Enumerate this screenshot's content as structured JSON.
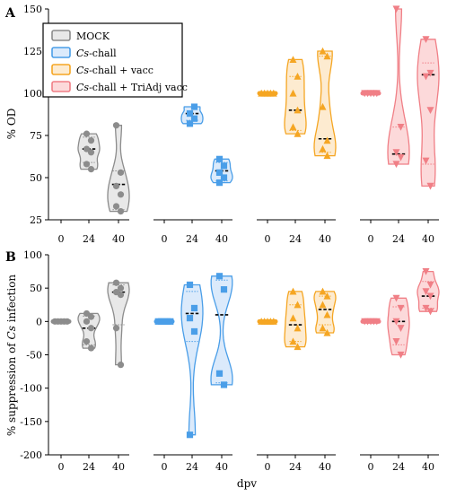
{
  "chart_data": [
    {
      "panel_label": "A",
      "type": "violin",
      "ylabel": "% OD",
      "ylim": [
        25,
        150
      ],
      "yticks": [
        25,
        50,
        75,
        100,
        125,
        150
      ],
      "groups": [
        {
          "name": "MOCK",
          "color": "#8c8c8c",
          "fill": "#e8e8e8",
          "marker": "circle",
          "timepoints": [
            {
              "dpv": "0",
              "points": [
                100,
                100,
                100,
                100,
                100
              ],
              "median": 100,
              "q1": 100,
              "q3": 100
            },
            {
              "dpv": "24",
              "points": [
                76,
                72,
                67,
                65,
                58,
                55
              ],
              "median": 67,
              "q1": 59,
              "q3": 74
            },
            {
              "dpv": "40",
              "points": [
                81,
                53,
                45,
                40,
                33,
                30
              ],
              "median": 46,
              "q1": 31,
              "q3": 54
            }
          ]
        },
        {
          "name": "Cs-chall",
          "color": "#4a9ee8",
          "fill": "#dbeafb",
          "marker": "square",
          "timepoints": [
            {
              "dpv": "0",
              "points": [
                100,
                100,
                100,
                100,
                100
              ],
              "median": 100,
              "q1": 100,
              "q3": 100
            },
            {
              "dpv": "24",
              "points": [
                88,
                85,
                82,
                92
              ],
              "median": 88,
              "q1": 84,
              "q3": 92
            },
            {
              "dpv": "40",
              "points": [
                61,
                57,
                53,
                50,
                47
              ],
              "median": 54,
              "q1": 48,
              "q3": 59
            }
          ]
        },
        {
          "name": "Cs-chall + vacc",
          "color": "#f5a623",
          "fill": "#fdebd0",
          "marker": "triangle",
          "timepoints": [
            {
              "dpv": "0",
              "points": [
                100,
                100,
                100,
                100,
                100
              ],
              "median": 100,
              "q1": 100,
              "q3": 100
            },
            {
              "dpv": "24",
              "points": [
                120,
                110,
                100,
                90,
                80,
                76
              ],
              "median": 90,
              "q1": 78,
              "q3": 110
            },
            {
              "dpv": "40",
              "points": [
                125,
                122,
                92,
                72,
                67,
                63
              ],
              "median": 73,
              "q1": 65,
              "q3": 122
            }
          ]
        },
        {
          "name": "Cs-chall + TriAdj vacc",
          "color": "#f07f86",
          "fill": "#fcd9da",
          "marker": "inverted-triangle",
          "timepoints": [
            {
              "dpv": "0",
              "points": [
                100,
                100,
                100,
                100,
                100
              ],
              "median": 100,
              "q1": 100,
              "q3": 100
            },
            {
              "dpv": "24",
              "points": [
                150,
                80,
                65,
                62,
                58
              ],
              "median": 64,
              "q1": 58,
              "q3": 80
            },
            {
              "dpv": "40",
              "points": [
                132,
                112,
                110,
                90,
                60,
                45
              ],
              "median": 111,
              "q1": 58,
              "q3": 118
            }
          ]
        }
      ]
    },
    {
      "panel_label": "B",
      "type": "violin",
      "ylabel_prefix": "% suppression of ",
      "ylabel_italic": "Cs",
      "ylabel_suffix": " infection",
      "ylim": [
        -200,
        100
      ],
      "yticks": [
        -200,
        -150,
        -100,
        -50,
        0,
        50,
        100
      ],
      "xlabel": "dpv",
      "groups": [
        {
          "name": "MOCK",
          "color": "#8c8c8c",
          "fill": "#e8e8e8",
          "marker": "circle",
          "timepoints": [
            {
              "dpv": "0",
              "points": [
                0,
                0,
                0,
                0,
                0
              ],
              "median": 0,
              "q1": 0,
              "q3": 0
            },
            {
              "dpv": "24",
              "points": [
                12,
                7,
                0,
                -10,
                -30,
                -40
              ],
              "median": -10,
              "q1": -35,
              "q3": 8
            },
            {
              "dpv": "40",
              "points": [
                58,
                50,
                44,
                40,
                -10,
                -65
              ],
              "median": 44,
              "q1": -5,
              "q3": 55
            }
          ]
        },
        {
          "name": "Cs-chall",
          "color": "#4a9ee8",
          "fill": "#dbeafb",
          "marker": "square",
          "timepoints": [
            {
              "dpv": "0",
              "points": [
                0,
                0,
                0,
                0,
                0
              ],
              "median": 0,
              "q1": 0,
              "q3": 0
            },
            {
              "dpv": "24",
              "points": [
                55,
                20,
                5,
                -15,
                -170
              ],
              "median": 12,
              "q1": -30,
              "q3": 45
            },
            {
              "dpv": "40",
              "points": [
                68,
                48,
                -78,
                -95
              ],
              "median": 10,
              "q1": -92,
              "q3": 62
            }
          ]
        },
        {
          "name": "Cs-chall + vacc",
          "color": "#f5a623",
          "fill": "#fdebd0",
          "marker": "triangle",
          "timepoints": [
            {
              "dpv": "0",
              "points": [
                0,
                0,
                0,
                0,
                0
              ],
              "median": 0,
              "q1": 0,
              "q3": 0
            },
            {
              "dpv": "24",
              "points": [
                45,
                25,
                5,
                -10,
                -30,
                -38
              ],
              "median": -5,
              "q1": -30,
              "q3": 25
            },
            {
              "dpv": "40",
              "points": [
                45,
                38,
                25,
                10,
                -10,
                -17
              ],
              "median": 18,
              "q1": -5,
              "q3": 38
            }
          ]
        },
        {
          "name": "Cs-chall + TriAdj vacc",
          "color": "#f07f86",
          "fill": "#fcd9da",
          "marker": "inverted-triangle",
          "timepoints": [
            {
              "dpv": "0",
              "points": [
                0,
                0,
                0,
                0,
                0
              ],
              "median": 0,
              "q1": 0,
              "q3": 0
            },
            {
              "dpv": "24",
              "points": [
                35,
                20,
                0,
                -10,
                -30,
                -50
              ],
              "median": 0,
              "q1": -35,
              "q3": 22
            },
            {
              "dpv": "40",
              "points": [
                75,
                55,
                45,
                38,
                20,
                15
              ],
              "median": 38,
              "q1": 20,
              "q3": 60
            }
          ]
        }
      ]
    }
  ],
  "legend": {
    "entries": [
      {
        "plain": "MOCK",
        "italic": "",
        "suffix": "",
        "color": "#8c8c8c",
        "fill": "#e8e8e8"
      },
      {
        "plain": "",
        "italic": "Cs",
        "suffix": "-chall",
        "color": "#4a9ee8",
        "fill": "#dbeafb"
      },
      {
        "plain": "",
        "italic": "Cs",
        "suffix": "-chall + vacc",
        "color": "#f5a623",
        "fill": "#fdebd0"
      },
      {
        "plain": "",
        "italic": "Cs",
        "suffix": "-chall + TriAdj vacc",
        "color": "#f07f86",
        "fill": "#fcd9da"
      }
    ],
    "placement": "top-left"
  }
}
